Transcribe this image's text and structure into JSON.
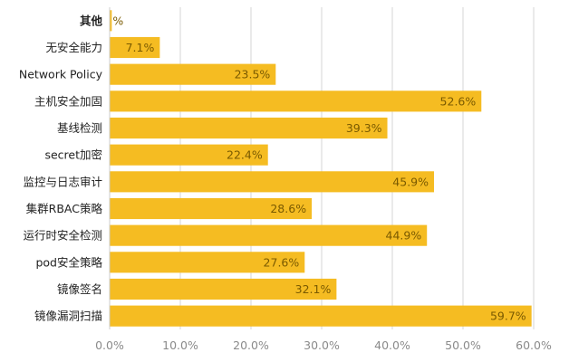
{
  "chart_data": {
    "type": "bar",
    "orientation": "horizontal",
    "title": "",
    "xlabel": "",
    "ylabel": "",
    "categories": [
      "其他",
      "无安全能力",
      "Network Policy",
      "主机安全加固",
      "基线检测",
      "secret加密",
      "监控与日志审计",
      "集群RBAC策略",
      "运行时安全检测",
      "pod安全策略",
      "镜像签名",
      "镜像漏洞扫描"
    ],
    "values": [
      0.3,
      7.1,
      23.5,
      52.6,
      39.3,
      22.4,
      45.9,
      28.6,
      44.9,
      27.6,
      32.1,
      59.7
    ],
    "data_labels": [
      "%",
      "7.1%",
      "23.5%",
      "52.6%",
      "39.3%",
      "22.4%",
      "45.9%",
      "28.6%",
      "44.9%",
      "27.6%",
      "32.1%",
      "59.7%"
    ],
    "xlim": [
      0,
      60
    ],
    "x_ticks": [
      "0.0%",
      "10.0%",
      "20.0%",
      "30.0%",
      "40.0%",
      "50.0%",
      "60.0%"
    ],
    "grid": true,
    "bar_color": "#f5bc22"
  }
}
